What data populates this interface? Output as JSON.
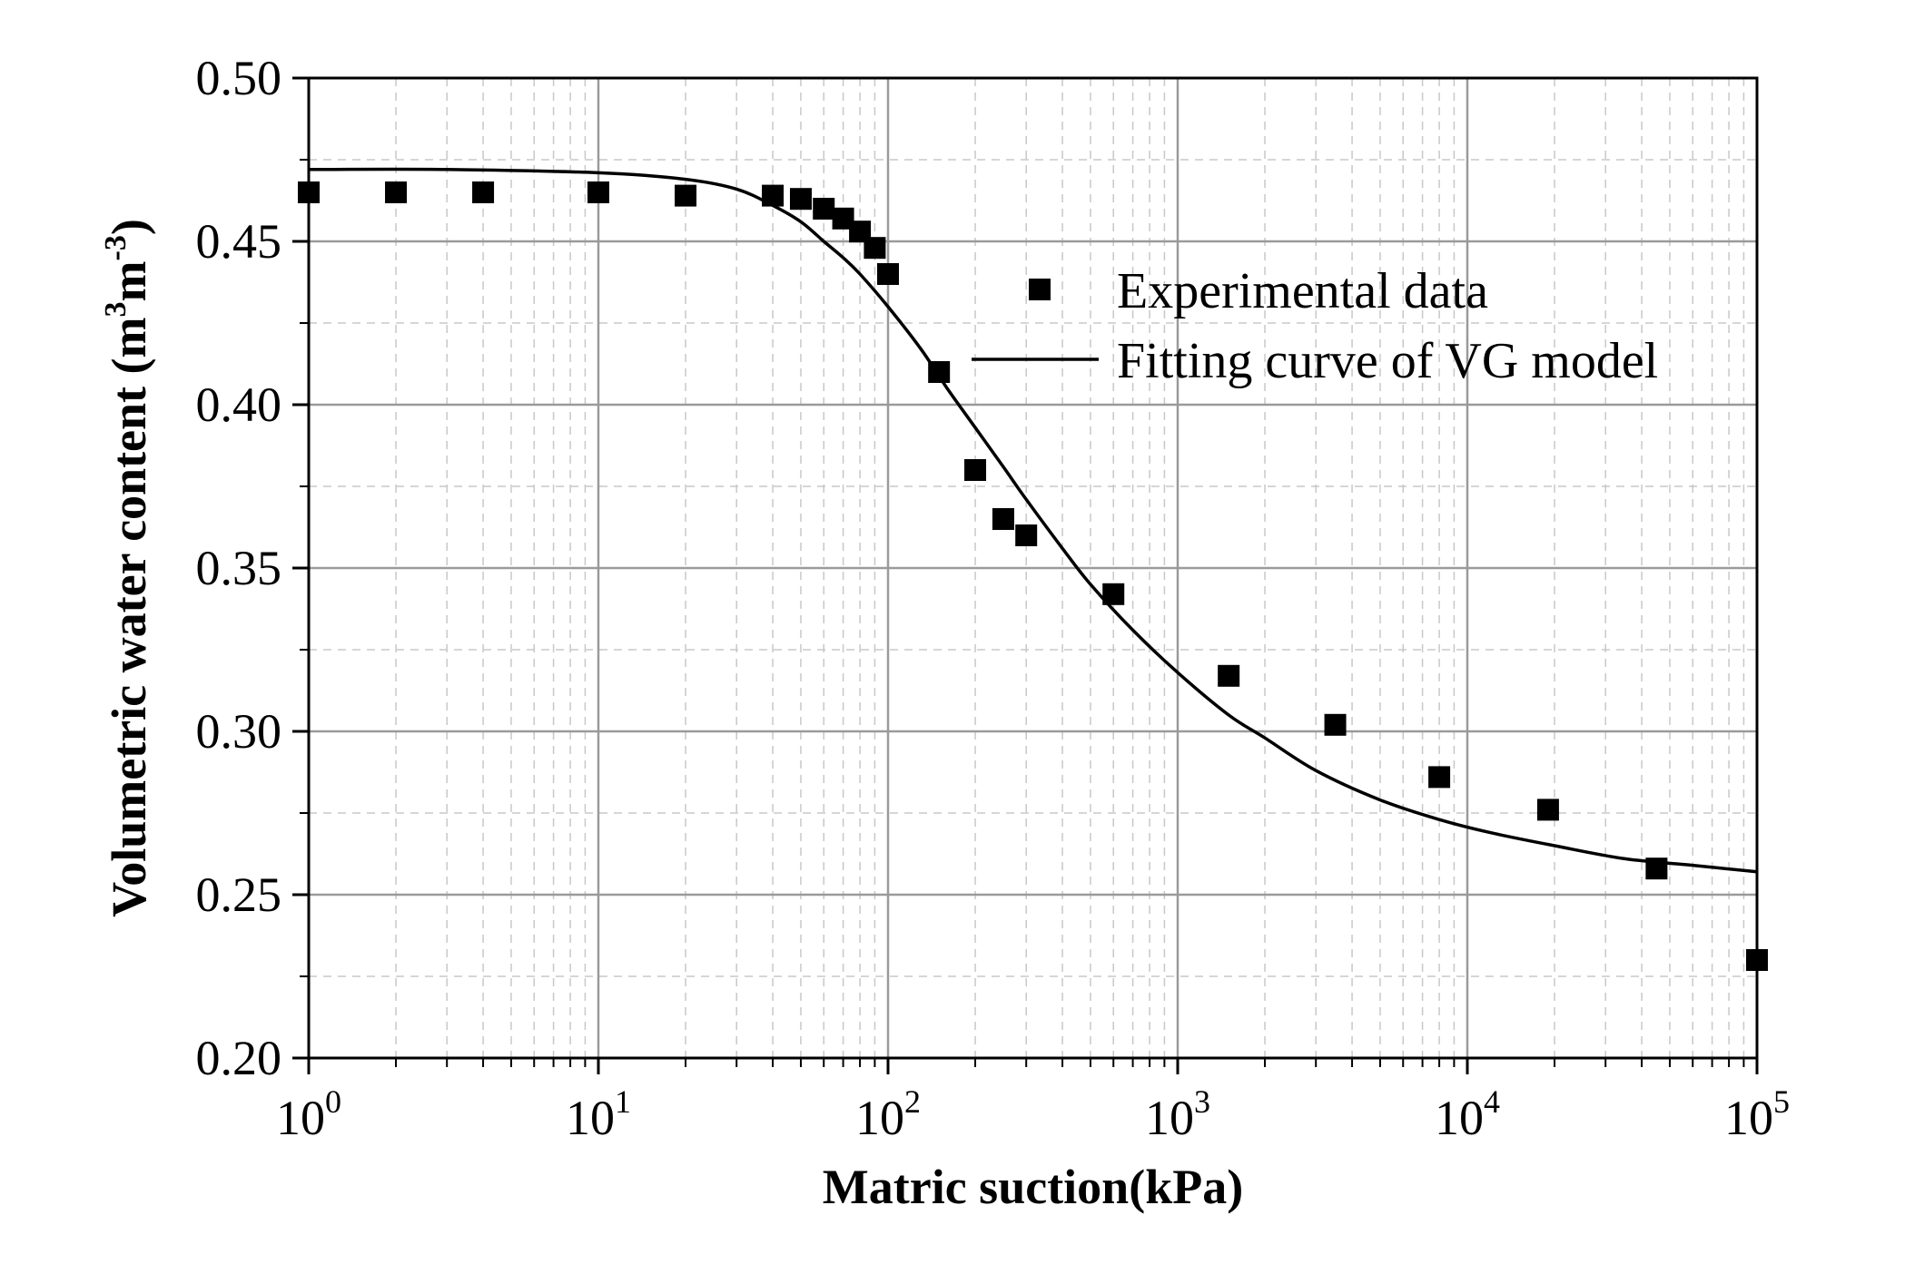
{
  "chart_data": {
    "type": "scatter",
    "xlabel": "Matric suction(kPa)",
    "ylabel_main": "Volumetric water content (m",
    "ylabel_sup1": "3",
    "ylabel_mid": "m",
    "ylabel_sup2": "-3",
    "ylabel_end": ")",
    "x_scale": "log",
    "xlim": [
      1,
      100000
    ],
    "ylim": [
      0.2,
      0.5
    ],
    "x_ticks": [
      {
        "base": "10",
        "exp": "0",
        "value": 1
      },
      {
        "base": "10",
        "exp": "1",
        "value": 10
      },
      {
        "base": "10",
        "exp": "2",
        "value": 100
      },
      {
        "base": "10",
        "exp": "3",
        "value": 1000
      },
      {
        "base": "10",
        "exp": "4",
        "value": 10000
      },
      {
        "base": "10",
        "exp": "5",
        "value": 100000
      }
    ],
    "y_ticks": [
      "0.20",
      "0.25",
      "0.30",
      "0.35",
      "0.40",
      "0.45",
      "0.50"
    ],
    "grid": true,
    "legend_position": "top-right",
    "series": [
      {
        "name": "Experimental data",
        "kind": "scatter",
        "marker": "square",
        "color": "#000000",
        "points": [
          [
            1,
            0.465
          ],
          [
            2,
            0.465
          ],
          [
            4,
            0.465
          ],
          [
            10,
            0.465
          ],
          [
            20,
            0.464
          ],
          [
            40,
            0.464
          ],
          [
            50,
            0.463
          ],
          [
            60,
            0.46
          ],
          [
            70,
            0.457
          ],
          [
            80,
            0.453
          ],
          [
            90,
            0.448
          ],
          [
            100,
            0.44
          ],
          [
            150,
            0.41
          ],
          [
            200,
            0.38
          ],
          [
            250,
            0.365
          ],
          [
            300,
            0.36
          ],
          [
            600,
            0.342
          ],
          [
            1500,
            0.317
          ],
          [
            3500,
            0.302
          ],
          [
            8000,
            0.286
          ],
          [
            19000,
            0.276
          ],
          [
            45000,
            0.258
          ],
          [
            100000,
            0.23
          ]
        ]
      },
      {
        "name": "Fitting curve of VG model",
        "kind": "line",
        "color": "#000000",
        "points": [
          [
            1,
            0.472
          ],
          [
            3,
            0.472
          ],
          [
            10,
            0.471
          ],
          [
            20,
            0.469
          ],
          [
            30,
            0.466
          ],
          [
            40,
            0.461
          ],
          [
            50,
            0.456
          ],
          [
            60,
            0.45
          ],
          [
            70,
            0.445
          ],
          [
            80,
            0.44
          ],
          [
            100,
            0.43
          ],
          [
            130,
            0.417
          ],
          [
            160,
            0.405
          ],
          [
            200,
            0.393
          ],
          [
            250,
            0.381
          ],
          [
            300,
            0.371
          ],
          [
            400,
            0.356
          ],
          [
            500,
            0.345
          ],
          [
            700,
            0.331
          ],
          [
            1000,
            0.318
          ],
          [
            1500,
            0.305
          ],
          [
            2000,
            0.298
          ],
          [
            3000,
            0.288
          ],
          [
            5000,
            0.279
          ],
          [
            8000,
            0.273
          ],
          [
            12000,
            0.269
          ],
          [
            20000,
            0.265
          ],
          [
            35000,
            0.261
          ],
          [
            60000,
            0.259
          ],
          [
            100000,
            0.257
          ]
        ]
      }
    ]
  }
}
